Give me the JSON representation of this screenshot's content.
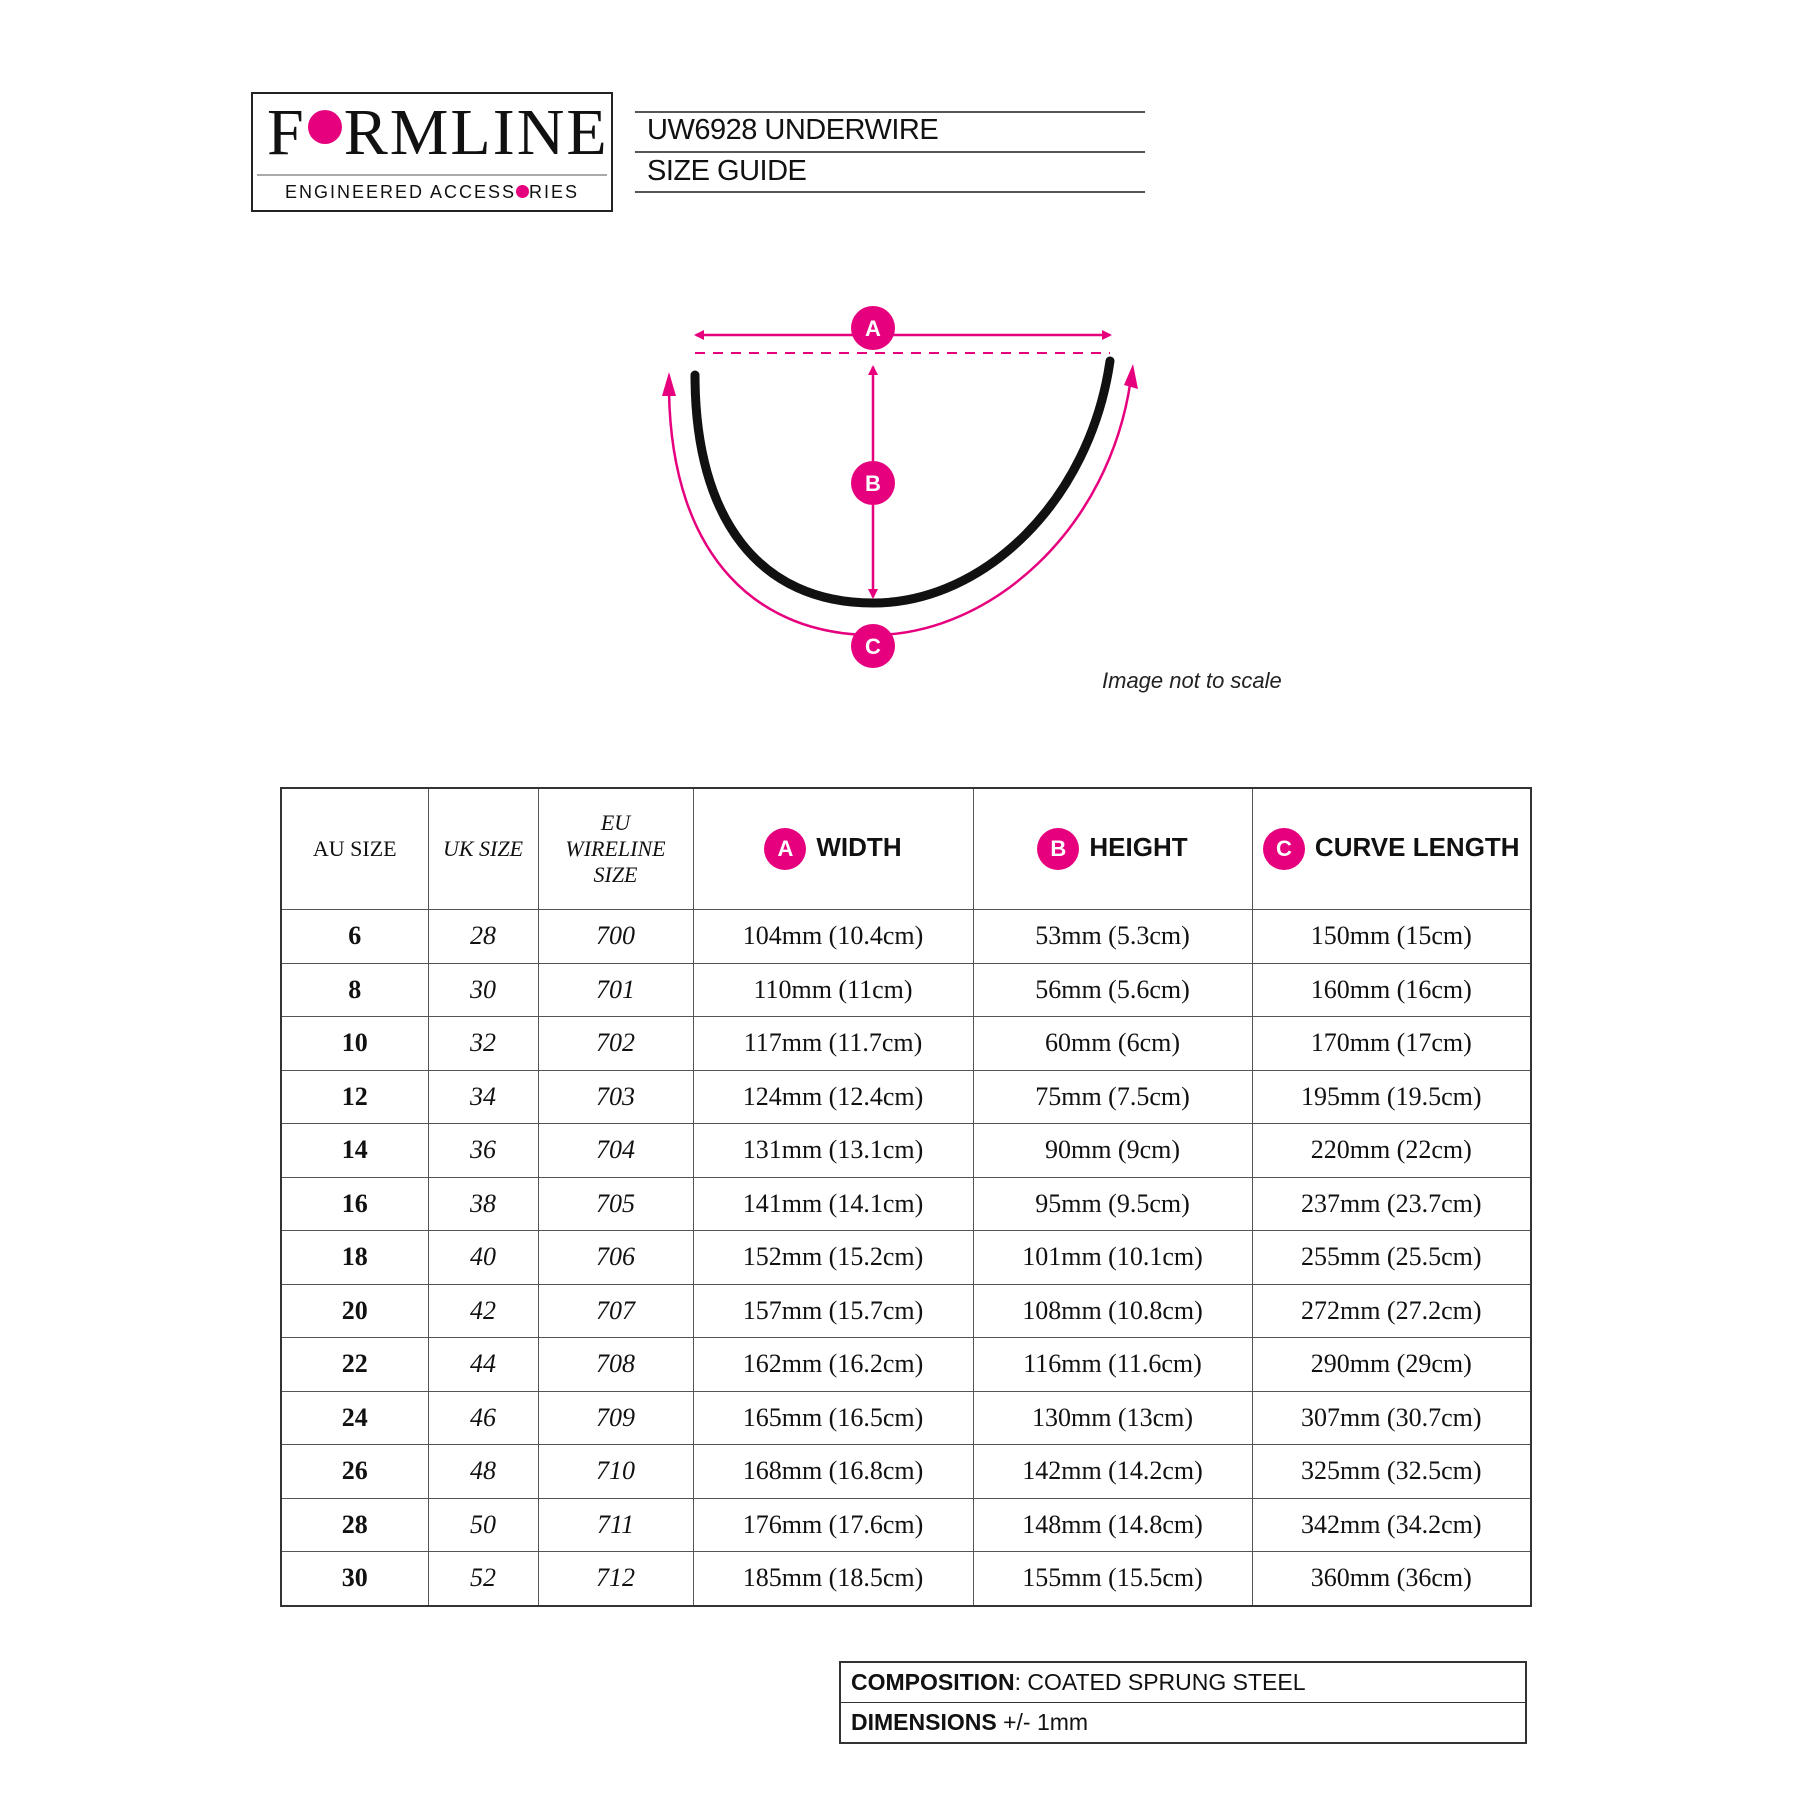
{
  "logo": {
    "brand": "FORMLINE",
    "tagline": "ENGINEERED ACCESSORIES"
  },
  "header": {
    "line1": "UW6928 UNDERWIRE",
    "line2": "SIZE GUIDE"
  },
  "diagram": {
    "labels": [
      "A",
      "B",
      "C"
    ],
    "accent": "#e6007e",
    "note": "Image not to scale"
  },
  "table": {
    "headers": [
      {
        "label": "AU SIZE"
      },
      {
        "label": "UK SIZE"
      },
      {
        "label": "EU WIRELINE SIZE"
      },
      {
        "badge": "A",
        "label": "WIDTH"
      },
      {
        "badge": "B",
        "label": "HEIGHT"
      },
      {
        "badge": "C",
        "label": "CURVE LENGTH"
      }
    ],
    "rows": [
      [
        "6",
        "28",
        "700",
        "104mm (10.4cm)",
        "53mm (5.3cm)",
        "150mm (15cm)"
      ],
      [
        "8",
        "30",
        "701",
        "110mm (11cm)",
        "56mm (5.6cm)",
        "160mm (16cm)"
      ],
      [
        "10",
        "32",
        "702",
        "117mm (11.7cm)",
        "60mm (6cm)",
        "170mm (17cm)"
      ],
      [
        "12",
        "34",
        "703",
        "124mm (12.4cm)",
        "75mm (7.5cm)",
        "195mm (19.5cm)"
      ],
      [
        "14",
        "36",
        "704",
        "131mm (13.1cm)",
        "90mm (9cm)",
        "220mm (22cm)"
      ],
      [
        "16",
        "38",
        "705",
        "141mm (14.1cm)",
        "95mm (9.5cm)",
        "237mm (23.7cm)"
      ],
      [
        "18",
        "40",
        "706",
        "152mm (15.2cm)",
        "101mm (10.1cm)",
        "255mm (25.5cm)"
      ],
      [
        "20",
        "42",
        "707",
        "157mm (15.7cm)",
        "108mm (10.8cm)",
        "272mm (27.2cm)"
      ],
      [
        "22",
        "44",
        "708",
        "162mm (16.2cm)",
        "116mm (11.6cm)",
        "290mm (29cm)"
      ],
      [
        "24",
        "46",
        "709",
        "165mm (16.5cm)",
        "130mm (13cm)",
        "307mm (30.7cm)"
      ],
      [
        "26",
        "48",
        "710",
        "168mm (16.8cm)",
        "142mm (14.2cm)",
        "325mm (32.5cm)"
      ],
      [
        "28",
        "50",
        "711",
        "176mm (17.6cm)",
        "148mm (14.8cm)",
        "342mm (34.2cm)"
      ],
      [
        "30",
        "52",
        "712",
        "185mm (18.5cm)",
        "155mm (15.5cm)",
        "360mm (36cm)"
      ]
    ]
  },
  "specs": {
    "composition_label": "COMPOSITION",
    "composition_value": ": COATED SPRUNG STEEL",
    "dimensions_label": "DIMENSIONS",
    "dimensions_value": " +/- 1mm"
  }
}
